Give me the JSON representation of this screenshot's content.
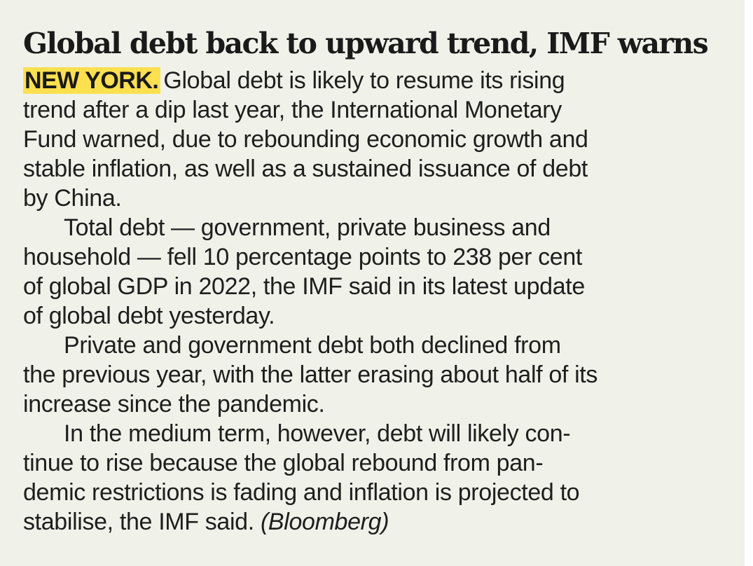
{
  "article": {
    "headline": "Global debt back to upward trend, IMF warns",
    "dateline": "NEW YORK.",
    "paragraphs": [
      {
        "lines": [
          "Global debt is likely to resume its rising",
          "trend after a dip last year, the International Monetary",
          "Fund warned, due to rebounding economic growth and",
          "stable inflation, as well as a sustained issuance of debt",
          "by China."
        ]
      },
      {
        "lines": [
          "Total debt — government, private business and",
          "household — fell 10 percentage points to 238 per cent",
          "of global GDP in 2022, the IMF said in its latest update",
          "of global debt yesterday."
        ]
      },
      {
        "lines": [
          "Private and government debt both declined from",
          "the previous year, with the latter erasing about half of its",
          "increase since the pandemic."
        ]
      },
      {
        "lines": [
          "In the medium term, however, debt will likely con-",
          "tinue to rise because the global rebound from pan-",
          "demic restrictions is fading and inflation is projected to",
          "stabilise, the IMF said."
        ]
      }
    ],
    "credit": "(Bloomberg)"
  },
  "colors": {
    "page_background": "#f0f2ea",
    "dateline_highlight": "#fde04f",
    "text": "#1e1e1e"
  }
}
